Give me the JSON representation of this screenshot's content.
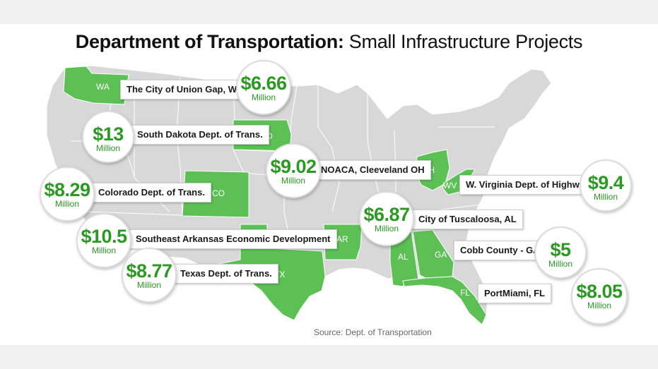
{
  "title": {
    "bold": "Department of Transportation:",
    "regular": "Small Infrastructure Projects"
  },
  "colors": {
    "highlight": "#5cc055",
    "map_gray": "#d8d8d8",
    "border_white": "#ffffff",
    "amount_green": "#2b9a22"
  },
  "state_labels": [
    "WA",
    "SD",
    "OH",
    "WV",
    "CO",
    "AR",
    "TX",
    "AL",
    "GA",
    "FL"
  ],
  "projects": [
    {
      "recipient": "The City of Union Gap, WA",
      "amount": "$6.66",
      "unit": "Million"
    },
    {
      "recipient": "South Dakota Dept. of Trans.",
      "amount": "$13",
      "unit": "Million"
    },
    {
      "recipient": "NOACA, Cleeveland OH",
      "amount": "$9.02",
      "unit": "Million"
    },
    {
      "recipient": "W. Virginia Dept. of Highways",
      "amount": "$9.4",
      "unit": "Million"
    },
    {
      "recipient": "Colorado Dept. of Trans.",
      "amount": "$8.29",
      "unit": "Million"
    },
    {
      "recipient": "City of Tuscaloosa, AL",
      "amount": "$6.87",
      "unit": "Million"
    },
    {
      "recipient": "Southeast Arkansas Economic Development",
      "amount": "$10.5",
      "unit": "Million"
    },
    {
      "recipient": "Cobb County - GA",
      "amount": "$5",
      "unit": "Million"
    },
    {
      "recipient": "Texas Dept. of Trans.",
      "amount": "$8.77",
      "unit": "Million"
    },
    {
      "recipient": "PortMiami, FL",
      "amount": "$8.05",
      "unit": "Million"
    }
  ],
  "source": "Source: Dept. of Transportation"
}
